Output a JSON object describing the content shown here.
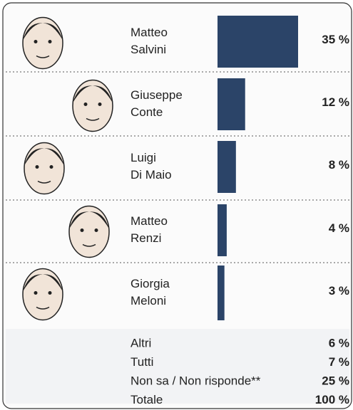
{
  "chart_data": {
    "type": "bar",
    "categories": [
      [
        "Matteo",
        "Salvini"
      ],
      [
        "Giuseppe",
        "Conte"
      ],
      [
        "Luigi",
        "Di Maio"
      ],
      [
        "Matteo",
        "Renzi"
      ],
      [
        "Giorgia",
        "Meloni"
      ]
    ],
    "values": [
      35,
      12,
      8,
      4,
      3
    ],
    "value_labels": [
      "35 %",
      "12 %",
      "8 %",
      "4 %",
      "3 %"
    ],
    "color": "#2b4468",
    "other_rows": {
      "categories": [
        "Altri",
        "Tutti",
        "Non sa / Non risponde**",
        "Totale"
      ],
      "values": [
        6,
        7,
        25,
        100
      ],
      "value_labels": [
        "6 %",
        "7 %",
        "25 %",
        "100 %"
      ]
    }
  }
}
